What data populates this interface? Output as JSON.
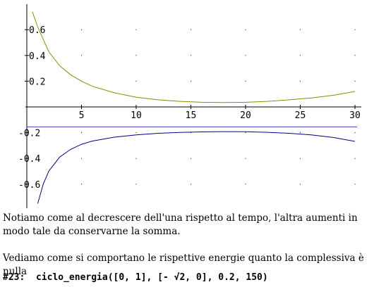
{
  "chart_data": {
    "type": "line",
    "x_ticks": [
      5,
      10,
      15,
      20,
      25,
      30
    ],
    "y_ticks": [
      -0.6,
      -0.4,
      -0.2,
      0.2,
      0.4,
      0.6
    ],
    "x_tick_labels": [
      "5",
      "10",
      "15",
      "20",
      "25",
      "30"
    ],
    "y_tick_labels": [
      "-0.6",
      "-0.4",
      "-0.2",
      "0.2",
      "0.4",
      "0.6"
    ],
    "xlim": [
      0,
      30.2
    ],
    "ylim": [
      -0.72,
      0.74
    ],
    "grid": "dots",
    "series": [
      {
        "color": "#8b8b00",
        "x": [
          0.5,
          1,
          2,
          3,
          4,
          5,
          6,
          8,
          10,
          12,
          14,
          16,
          18,
          20,
          22,
          24,
          26,
          28,
          30
        ],
        "y": [
          0.74,
          0.62,
          0.43,
          0.32,
          0.25,
          0.2,
          0.16,
          0.11,
          0.075,
          0.055,
          0.043,
          0.036,
          0.034,
          0.036,
          0.043,
          0.055,
          0.07,
          0.09,
          0.12
        ]
      },
      {
        "color": "#3f3fc0",
        "x": [
          0,
          30.2
        ],
        "y": [
          -0.155,
          -0.155
        ]
      },
      {
        "color": "#00007f",
        "x": [
          1,
          1.5,
          2,
          3,
          4,
          5,
          6,
          8,
          10,
          12,
          14,
          16,
          18,
          20,
          22,
          24,
          26,
          28,
          30
        ],
        "y": [
          -0.75,
          -0.6,
          -0.5,
          -0.39,
          -0.33,
          -0.29,
          -0.265,
          -0.235,
          -0.217,
          -0.205,
          -0.198,
          -0.194,
          -0.192,
          -0.193,
          -0.197,
          -0.205,
          -0.217,
          -0.237,
          -0.268
        ]
      }
    ]
  },
  "text": {
    "paragraph1": "Notiamo come al decrescere dell'una rispetto al tempo, l'altra aumenti in modo tale da conservarne la somma.",
    "paragraph2": "Vediamo come si comportano le rispettive energie quanto la complessiva è nulla",
    "command": "#23:  ciclo_energia([0, 1], [- √2, 0], 0.2, 150)"
  }
}
